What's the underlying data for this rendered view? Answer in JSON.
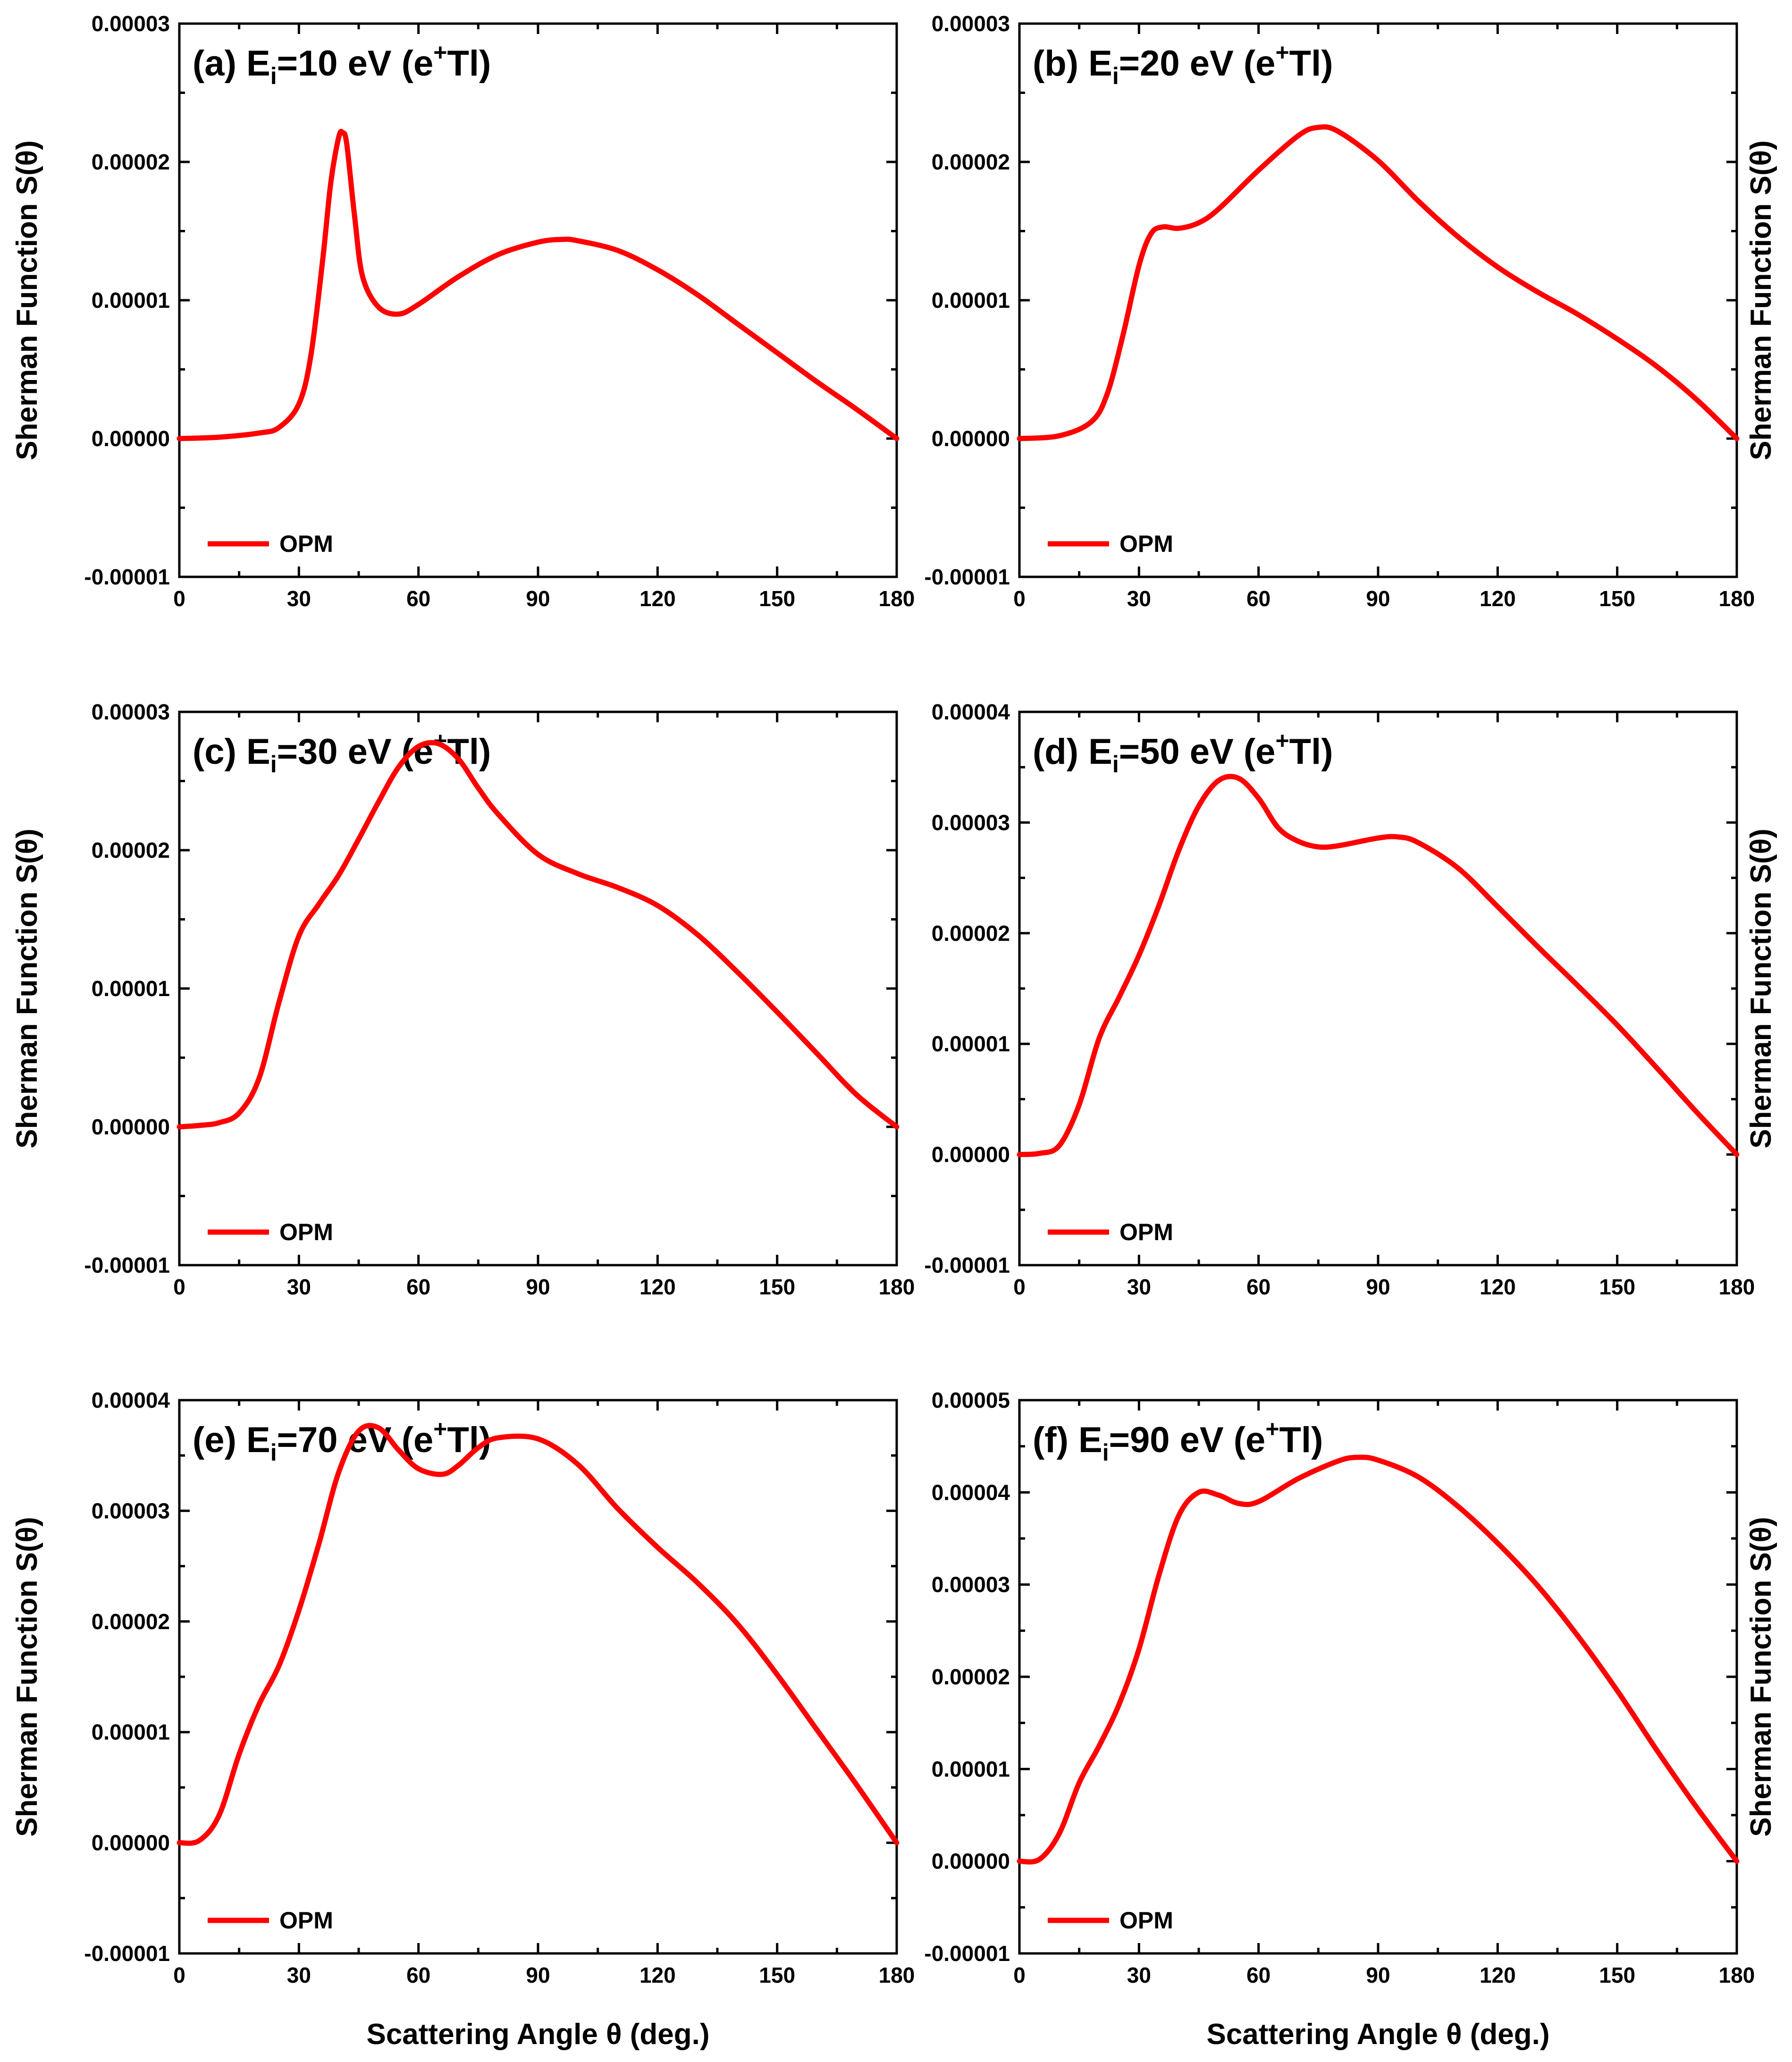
{
  "figure": {
    "xlabel": "Scattering Angle θ (deg.)",
    "ylabel": "Sherman Function S(θ)"
  },
  "style": {
    "line_color": "#ff0000",
    "axis_color": "#000000",
    "background": "#ffffff"
  },
  "chart_data": [
    {
      "id": "a",
      "type": "line",
      "title": {
        "prefix": "(a) E",
        "sub": "i",
        "mid": "=10 eV (e",
        "sup": "+",
        "suffix": "Tl)"
      },
      "legend": "OPM",
      "legend_pos": "bottom-left",
      "ylabel_side": "left",
      "xlim": [
        0,
        180
      ],
      "xticks": [
        0,
        30,
        60,
        90,
        120,
        150,
        180
      ],
      "ylim": [
        -1e-05,
        3e-05
      ],
      "yticks": [
        -1e-05,
        0,
        1e-05,
        2e-05,
        3e-05
      ],
      "ytick_labels": [
        "-0.00001",
        "0.00000",
        "0.00001",
        "0.00002",
        "0.00003"
      ],
      "series": [
        {
          "name": "OPM",
          "x": [
            0,
            10,
            20,
            25,
            30,
            33,
            36,
            38,
            40,
            41,
            42,
            44,
            46,
            50,
            55,
            60,
            70,
            80,
            90,
            96,
            100,
            110,
            120,
            130,
            140,
            150,
            160,
            170,
            180
          ],
          "y": [
            0,
            1e-07,
            4e-07,
            8e-07,
            2.5e-06,
            6e-06,
            1.3e-05,
            1.85e-05,
            2.18e-05,
            2.21e-05,
            2.13e-05,
            1.6e-05,
            1.17e-05,
            9.5e-06,
            9e-06,
            9.7e-06,
            1.17e-05,
            1.33e-05,
            1.42e-05,
            1.44e-05,
            1.43e-05,
            1.36e-05,
            1.22e-05,
            1.04e-05,
            8.3e-06,
            6.2e-06,
            4.1e-06,
            2.1e-06,
            0
          ]
        }
      ]
    },
    {
      "id": "b",
      "type": "line",
      "title": {
        "prefix": "(b) E",
        "sub": "i",
        "mid": "=20 eV (e",
        "sup": "+",
        "suffix": "Tl)"
      },
      "legend": "OPM",
      "legend_pos": "bottom-left",
      "ylabel_side": "right",
      "xlim": [
        0,
        180
      ],
      "xticks": [
        0,
        30,
        60,
        90,
        120,
        150,
        180
      ],
      "ylim": [
        -1e-05,
        3e-05
      ],
      "yticks": [
        -1e-05,
        0,
        1e-05,
        2e-05,
        3e-05
      ],
      "ytick_labels": [
        "-0.00001",
        "0.00000",
        "0.00001",
        "0.00002",
        "0.00003"
      ],
      "series": [
        {
          "name": "OPM",
          "x": [
            0,
            10,
            18,
            22,
            26,
            30,
            33,
            36,
            40,
            45,
            50,
            60,
            70,
            75,
            80,
            90,
            100,
            110,
            120,
            130,
            140,
            150,
            160,
            170,
            180
          ],
          "y": [
            0,
            2e-07,
            1.2e-06,
            3.2e-06,
            7.5e-06,
            1.25e-05,
            1.48e-05,
            1.53e-05,
            1.52e-05,
            1.56e-05,
            1.66e-05,
            1.94e-05,
            2.19e-05,
            2.25e-05,
            2.22e-05,
            2.01e-05,
            1.72e-05,
            1.46e-05,
            1.24e-05,
            1.06e-05,
            9e-06,
            7.2e-06,
            5.2e-06,
            2.8e-06,
            0
          ]
        }
      ]
    },
    {
      "id": "c",
      "type": "line",
      "title": {
        "prefix": "(c) E",
        "sub": "i",
        "mid": "=30 eV (e",
        "sup": "+",
        "suffix": "Tl)"
      },
      "legend": "OPM",
      "legend_pos": "bottom-left",
      "ylabel_side": "left",
      "xlim": [
        0,
        180
      ],
      "xticks": [
        0,
        30,
        60,
        90,
        120,
        150,
        180
      ],
      "ylim": [
        -1e-05,
        3e-05
      ],
      "yticks": [
        -1e-05,
        0,
        1e-05,
        2e-05,
        3e-05
      ],
      "ytick_labels": [
        "-0.00001",
        "0.00000",
        "0.00001",
        "0.00002",
        "0.00003"
      ],
      "series": [
        {
          "name": "OPM",
          "x": [
            0,
            5,
            10,
            15,
            20,
            25,
            30,
            35,
            40,
            45,
            50,
            55,
            60,
            65,
            70,
            75,
            80,
            90,
            100,
            110,
            120,
            130,
            140,
            150,
            160,
            170,
            180
          ],
          "y": [
            0,
            1e-07,
            3e-07,
            1e-06,
            3.5e-06,
            9e-06,
            1.38e-05,
            1.61e-05,
            1.82e-05,
            2.08e-05,
            2.35e-05,
            2.6e-05,
            2.75e-05,
            2.77e-05,
            2.66e-05,
            2.45e-05,
            2.26e-05,
            1.97e-05,
            1.83e-05,
            1.73e-05,
            1.6e-05,
            1.39e-05,
            1.12e-05,
            8.3e-06,
            5.3e-06,
            2.3e-06,
            0
          ]
        }
      ]
    },
    {
      "id": "d",
      "type": "line",
      "title": {
        "prefix": "(d) E",
        "sub": "i",
        "mid": "=50 eV (e",
        "sup": "+",
        "suffix": "Tl)"
      },
      "legend": "OPM",
      "legend_pos": "bottom-left",
      "ylabel_side": "right",
      "xlim": [
        0,
        180
      ],
      "xticks": [
        0,
        30,
        60,
        90,
        120,
        150,
        180
      ],
      "ylim": [
        -1e-05,
        4e-05
      ],
      "yticks": [
        -1e-05,
        0,
        1e-05,
        2e-05,
        3e-05,
        4e-05
      ],
      "ytick_labels": [
        "-0.00001",
        "0.00000",
        "0.00001",
        "0.00002",
        "0.00003",
        "0.00004"
      ],
      "series": [
        {
          "name": "OPM",
          "x": [
            0,
            5,
            10,
            15,
            20,
            25,
            30,
            35,
            40,
            45,
            50,
            55,
            60,
            65,
            70,
            75,
            80,
            90,
            95,
            100,
            110,
            120,
            130,
            140,
            150,
            160,
            170,
            180
          ],
          "y": [
            0,
            1e-07,
            8e-07,
            4.5e-06,
            1.05e-05,
            1.42e-05,
            1.8e-05,
            2.25e-05,
            2.75e-05,
            3.15e-05,
            3.38e-05,
            3.4e-05,
            3.22e-05,
            2.95e-05,
            2.83e-05,
            2.78e-05,
            2.79e-05,
            2.86e-05,
            2.87e-05,
            2.82e-05,
            2.59e-05,
            2.24e-05,
            1.88e-05,
            1.53e-05,
            1.17e-05,
            7.8e-06,
            3.8e-06,
            0
          ]
        }
      ]
    },
    {
      "id": "e",
      "type": "line",
      "title": {
        "prefix": "(e) E",
        "sub": "i",
        "mid": "=70 eV (e",
        "sup": "+",
        "suffix": "Tl)"
      },
      "legend": "OPM",
      "legend_pos": "bottom-left",
      "ylabel_side": "left",
      "xlim": [
        0,
        180
      ],
      "xticks": [
        0,
        30,
        60,
        90,
        120,
        150,
        180
      ],
      "ylim": [
        -1e-05,
        4e-05
      ],
      "yticks": [
        -1e-05,
        0,
        1e-05,
        2e-05,
        3e-05,
        4e-05
      ],
      "ytick_labels": [
        "-0.00001",
        "0.00000",
        "0.00001",
        "0.00002",
        "0.00003",
        "0.00004"
      ],
      "series": [
        {
          "name": "OPM",
          "x": [
            0,
            5,
            10,
            15,
            20,
            25,
            30,
            35,
            40,
            45,
            50,
            55,
            60,
            66,
            70,
            75,
            80,
            90,
            100,
            110,
            120,
            130,
            140,
            150,
            160,
            170,
            180
          ],
          "y": [
            0,
            2e-07,
            2.5e-06,
            8e-06,
            1.25e-05,
            1.6e-05,
            2.1e-05,
            2.7e-05,
            3.35e-05,
            3.72e-05,
            3.75e-05,
            3.55e-05,
            3.38e-05,
            3.33e-05,
            3.41e-05,
            3.57e-05,
            3.66e-05,
            3.65e-05,
            3.42e-05,
            3.02e-05,
            2.67e-05,
            2.35e-05,
            1.98e-05,
            1.52e-05,
            1.02e-05,
            5.2e-06,
            0
          ]
        }
      ]
    },
    {
      "id": "f",
      "type": "line",
      "title": {
        "prefix": "(f) E",
        "sub": "i",
        "mid": "=90 eV (e",
        "sup": "+",
        "suffix": "Tl)"
      },
      "legend": "OPM",
      "legend_pos": "bottom-left",
      "ylabel_side": "right",
      "xlim": [
        0,
        180
      ],
      "xticks": [
        0,
        30,
        60,
        90,
        120,
        150,
        180
      ],
      "ylim": [
        -1e-05,
        5e-05
      ],
      "yticks": [
        -1e-05,
        0,
        1e-05,
        2e-05,
        3e-05,
        4e-05,
        5e-05
      ],
      "ytick_labels": [
        "-0.00001",
        "0.00000",
        "0.00001",
        "0.00002",
        "0.00003",
        "0.00004",
        "0.00005"
      ],
      "series": [
        {
          "name": "OPM",
          "x": [
            0,
            5,
            10,
            15,
            20,
            25,
            30,
            35,
            40,
            45,
            50,
            55,
            60,
            70,
            80,
            85,
            90,
            100,
            110,
            120,
            130,
            140,
            150,
            160,
            170,
            180
          ],
          "y": [
            0,
            2e-07,
            3e-06,
            8.5e-06,
            1.25e-05,
            1.7e-05,
            2.3e-05,
            3.1e-05,
            3.75e-05,
            4e-05,
            3.97e-05,
            3.88e-05,
            3.9e-05,
            4.15e-05,
            4.34e-05,
            4.38e-05,
            4.35e-05,
            4.17e-05,
            3.85e-05,
            3.45e-05,
            2.99e-05,
            2.45e-05,
            1.85e-05,
            1.2e-05,
            5.8e-06,
            0
          ]
        }
      ]
    }
  ]
}
